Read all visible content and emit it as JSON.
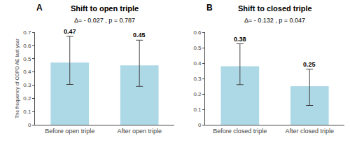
{
  "chart_data": [
    {
      "type": "bar",
      "title": "Shift to open triple",
      "panel_label": "A",
      "categories": [
        "Before open triple",
        "After open triple"
      ],
      "values": [
        0.47,
        0.45
      ],
      "error_upper": [
        0.2,
        0.19
      ],
      "error_lower": [
        0.165,
        0.16
      ],
      "ylim": [
        0.0,
        0.7
      ],
      "yticks": [
        0.0,
        0.1,
        0.2,
        0.3,
        0.4,
        0.5,
        0.6,
        0.7
      ],
      "ylabel": "The frequency of COPD AE last year",
      "annotation": "Δ= - 0.027 , p = 0.787",
      "color": "#add8e6",
      "data_labels": true,
      "grid": false
    },
    {
      "type": "bar",
      "title": "Shift to closed triple",
      "panel_label": "B",
      "categories": [
        "Before closed triple",
        "After closed triple"
      ],
      "values": [
        0.38,
        0.25
      ],
      "error_upper": [
        0.145,
        0.11
      ],
      "error_lower": [
        0.12,
        0.125
      ],
      "ylim": [
        0.0,
        0.6
      ],
      "yticks": [
        0.0,
        0.1,
        0.2,
        0.3,
        0.4,
        0.5,
        0.6
      ],
      "annotation": "Δ= - 0.132 , p = 0.047",
      "color": "#add8e6",
      "data_labels": true,
      "grid": false
    }
  ]
}
